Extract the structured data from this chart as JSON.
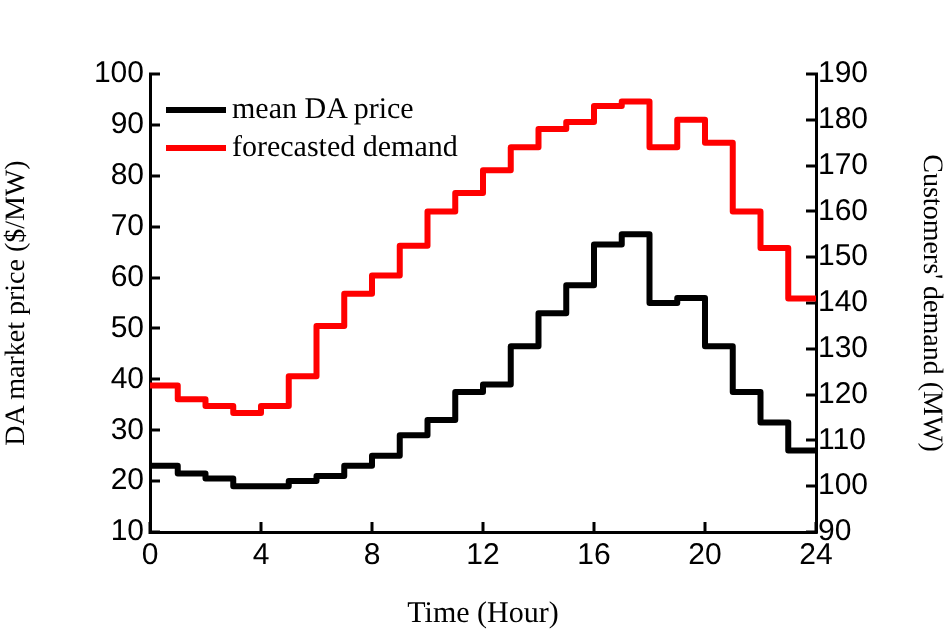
{
  "chart_data": {
    "type": "step",
    "xlabel": "Time (Hour)",
    "ylabel": "DA market price ($/MW)",
    "y2label": "Customers' demand (MW)",
    "x": [
      0,
      1,
      2,
      3,
      4,
      5,
      6,
      7,
      8,
      9,
      10,
      11,
      12,
      13,
      14,
      15,
      16,
      17,
      18,
      19,
      20,
      21,
      22,
      23,
      24
    ],
    "xlim": [
      0,
      24
    ],
    "xticks": [
      0,
      4,
      8,
      12,
      16,
      20,
      24
    ],
    "ylim": [
      10,
      100
    ],
    "yticks": [
      10,
      20,
      30,
      40,
      50,
      60,
      70,
      80,
      90,
      100
    ],
    "y2lim": [
      90,
      190
    ],
    "y2ticks": [
      90,
      100,
      110,
      120,
      130,
      140,
      150,
      160,
      170,
      180,
      190
    ],
    "series": [
      {
        "name": "mean DA price",
        "color": "#000000",
        "values": [
          23,
          21.5,
          20.5,
          19,
          19,
          20,
          21,
          23,
          25,
          29,
          32,
          37.5,
          39,
          46.5,
          53,
          58.5,
          66.5,
          68.5,
          55,
          56,
          46.5,
          37.5,
          31.5,
          26,
          26
        ]
      },
      {
        "name": "forecasted demand",
        "color": "#ff0000",
        "axis": "y2",
        "values": [
          122,
          119,
          117.5,
          116,
          117.5,
          124,
          135,
          142,
          146,
          152.5,
          160,
          164,
          169,
          174,
          178,
          179.5,
          183,
          184,
          174,
          180,
          175,
          160,
          152,
          141,
          141
        ]
      }
    ],
    "grid": false,
    "legend": "top left",
    "line_style": "solid",
    "marker": "none"
  }
}
